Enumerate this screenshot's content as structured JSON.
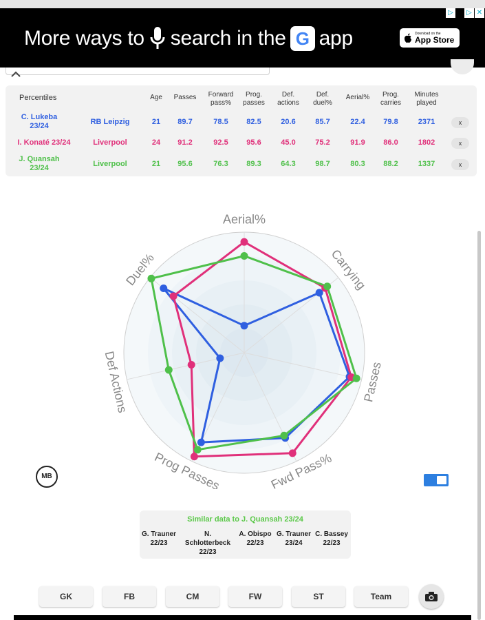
{
  "ad": {
    "text_part1": "More ways to",
    "text_part2": "search in the",
    "g_letter": "G",
    "text_part3": "app",
    "appstore_small": "Download on the",
    "appstore_big": "App Store"
  },
  "table": {
    "title": "Percentiles",
    "headers": [
      {
        "label": "Age"
      },
      {
        "label": "Passes"
      },
      {
        "label": "Forward pass%"
      },
      {
        "label": "Prog. passes"
      },
      {
        "label": "Def. actions"
      },
      {
        "label": "Def. duel%"
      },
      {
        "label": "Aerial%"
      },
      {
        "label": "Prog. carries"
      },
      {
        "label": "Minutes played"
      }
    ],
    "rows": [
      {
        "player": "C. Lukeba 23/24",
        "team": "RB Leipzig",
        "color": "#2f5fe0",
        "values": [
          "21",
          "89.7",
          "78.5",
          "82.5",
          "20.6",
          "85.7",
          "22.4",
          "79.8",
          "2371"
        ],
        "remove": "x"
      },
      {
        "player": "I. Konaté 23/24",
        "team": "Liverpool",
        "color": "#e0307a",
        "values": [
          "24",
          "91.2",
          "92.5",
          "95.6",
          "45.0",
          "75.2",
          "91.9",
          "86.0",
          "1802"
        ],
        "remove": "x"
      },
      {
        "player": "J. Quansah 23/24",
        "team": "Liverpool",
        "color": "#4fc04a",
        "values": [
          "21",
          "95.6",
          "76.3",
          "89.3",
          "64.3",
          "98.7",
          "80.3",
          "88.2",
          "1337"
        ],
        "remove": "x"
      }
    ]
  },
  "chart_data": {
    "type": "radar",
    "axes": [
      "Aerial%",
      "Carrying",
      "Passes",
      "Fwd Pass%",
      "Prog Passes",
      "Def Actions",
      "Duel%"
    ],
    "range": [
      0,
      100
    ],
    "rings": 5,
    "series": [
      {
        "name": "C. Lukeba 23/24",
        "color": "#2f5fe0",
        "values": [
          22.4,
          79.8,
          89.7,
          78.5,
          82.5,
          20.6,
          85.7
        ]
      },
      {
        "name": "I. Konaté 23/24",
        "color": "#e0307a",
        "values": [
          91.9,
          86.0,
          91.2,
          92.5,
          95.6,
          45.0,
          75.2
        ]
      },
      {
        "name": "J. Quansah 23/24",
        "color": "#4fc04a",
        "values": [
          80.3,
          88.2,
          95.6,
          76.3,
          89.3,
          64.3,
          98.7
        ]
      }
    ]
  },
  "similar": {
    "title": "Similar data to J. Quansah 23/24",
    "players": [
      {
        "name": "G. Trauner",
        "season": "22/23"
      },
      {
        "name": "N. Schlotterbeck",
        "season": "22/23"
      },
      {
        "name": "A. Obispo",
        "season": "22/23"
      },
      {
        "name": "G. Trauner",
        "season": "23/24"
      },
      {
        "name": "C. Bassey",
        "season": "22/23"
      }
    ]
  },
  "logo_text": "MB",
  "buttons": [
    {
      "label": "GK"
    },
    {
      "label": "FB"
    },
    {
      "label": "CM"
    },
    {
      "label": "FW"
    },
    {
      "label": "ST"
    },
    {
      "label": "Team"
    }
  ],
  "icons": {
    "camera": "camera-icon",
    "chevron": "chevron-up-icon",
    "mic": "microphone-icon",
    "apple": "apple-icon"
  }
}
